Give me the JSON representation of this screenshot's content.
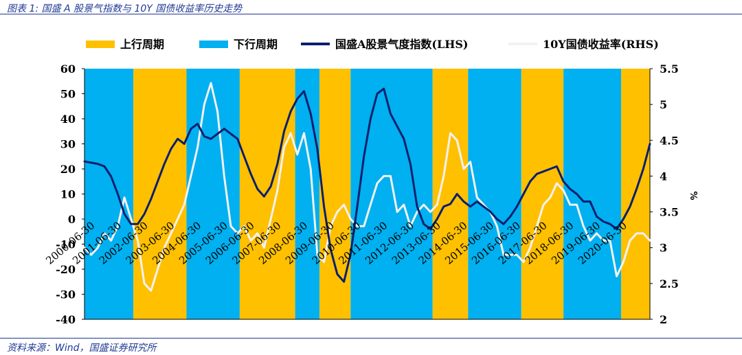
{
  "figure_title": "图表 1:  国盛 A 股景气指数与 10Y 国债收益率历史走势",
  "source_note": "资料来源：Wind，国盛证券研究所",
  "colors": {
    "upcycle": "#FFC000",
    "downcycle": "#00B0F0",
    "index_line": "#0A1F6E",
    "yield_line": "#F2F2F2",
    "text": "#1f3a93"
  },
  "chart_data": {
    "type": "line",
    "legend": [
      {
        "label": "上行周期",
        "kind": "band",
        "color": "#FFC000"
      },
      {
        "label": "下行周期",
        "kind": "band",
        "color": "#00B0F0"
      },
      {
        "label": "国盛A股景气度指数(LHS)",
        "kind": "line",
        "color": "#0A1F6E"
      },
      {
        "label": "10Y国债收益率(RHS)",
        "kind": "line",
        "color": "#F2F2F2"
      }
    ],
    "legend_position": "top",
    "y_left": {
      "ylim": [
        -40,
        60
      ],
      "ticks": [
        "60",
        "50",
        "40",
        "30",
        "20",
        "10",
        "0",
        "-10",
        "-20",
        "-30",
        "-40"
      ]
    },
    "y_right": {
      "ylim": [
        2,
        5.5
      ],
      "ticks": [
        "5.5",
        "5",
        "4.5",
        "4",
        "3.5",
        "3",
        "2.5",
        "2"
      ],
      "unit": "%"
    },
    "x_ticks": [
      "2000-06-30",
      "2001-06-30",
      "2002-06-30",
      "2003-06-30",
      "2004-06-30",
      "2005-06-30",
      "2006-06-30",
      "2007-06-30",
      "2008-06-30",
      "2009-06-30",
      "2010-06-30",
      "2011-06-30",
      "2012-06-30",
      "2013-06-30",
      "2014-06-30",
      "2015-06-30",
      "2016-06-30",
      "2017-06-30",
      "2018-06-30",
      "2019-06-30",
      "2020-06-30"
    ],
    "x_range": [
      "2000-03",
      "2021-06"
    ],
    "bands": [
      {
        "type": "down",
        "start": "2000-03",
        "end": "2002-01"
      },
      {
        "type": "up",
        "start": "2002-01",
        "end": "2004-01"
      },
      {
        "type": "down",
        "start": "2004-01",
        "end": "2006-01"
      },
      {
        "type": "up",
        "start": "2006-01",
        "end": "2008-02"
      },
      {
        "type": "down",
        "start": "2008-02",
        "end": "2009-01"
      },
      {
        "type": "up",
        "start": "2009-01",
        "end": "2010-03"
      },
      {
        "type": "down",
        "start": "2010-03",
        "end": "2013-04"
      },
      {
        "type": "up",
        "start": "2013-04",
        "end": "2014-08"
      },
      {
        "type": "down",
        "start": "2014-08",
        "end": "2016-08"
      },
      {
        "type": "up",
        "start": "2016-08",
        "end": "2018-03"
      },
      {
        "type": "down",
        "start": "2018-03",
        "end": "2020-05"
      },
      {
        "type": "up",
        "start": "2020-05",
        "end": "2021-06"
      }
    ],
    "series": [
      {
        "name": "国盛A股景气度指数(LHS)",
        "axis": "left",
        "points": [
          [
            "2000-03",
            23
          ],
          [
            "2000-06",
            22.5
          ],
          [
            "2000-09",
            22
          ],
          [
            "2000-12",
            21
          ],
          [
            "2001-03",
            17
          ],
          [
            "2001-06",
            10
          ],
          [
            "2001-09",
            2
          ],
          [
            "2001-12",
            -2
          ],
          [
            "2002-03",
            -2
          ],
          [
            "2002-06",
            2
          ],
          [
            "2002-09",
            8
          ],
          [
            "2002-12",
            15
          ],
          [
            "2003-03",
            22
          ],
          [
            "2003-06",
            28
          ],
          [
            "2003-09",
            32
          ],
          [
            "2003-12",
            30
          ],
          [
            "2004-03",
            36
          ],
          [
            "2004-06",
            38
          ],
          [
            "2004-09",
            33
          ],
          [
            "2004-12",
            32
          ],
          [
            "2005-03",
            34
          ],
          [
            "2005-06",
            36
          ],
          [
            "2005-09",
            34
          ],
          [
            "2005-12",
            32
          ],
          [
            "2006-03",
            25
          ],
          [
            "2006-06",
            18
          ],
          [
            "2006-09",
            12
          ],
          [
            "2006-12",
            9
          ],
          [
            "2007-03",
            13
          ],
          [
            "2007-06",
            22
          ],
          [
            "2007-09",
            35
          ],
          [
            "2007-12",
            43
          ],
          [
            "2008-03",
            48
          ],
          [
            "2008-06",
            51
          ],
          [
            "2008-09",
            42
          ],
          [
            "2008-12",
            28
          ],
          [
            "2009-03",
            5
          ],
          [
            "2009-06",
            -12
          ],
          [
            "2009-09",
            -22
          ],
          [
            "2009-12",
            -25
          ],
          [
            "2010-03",
            -14
          ],
          [
            "2010-06",
            5
          ],
          [
            "2010-09",
            25
          ],
          [
            "2010-12",
            40
          ],
          [
            "2011-03",
            50
          ],
          [
            "2011-06",
            52
          ],
          [
            "2011-09",
            42
          ],
          [
            "2011-12",
            37
          ],
          [
            "2012-03",
            32
          ],
          [
            "2012-06",
            22
          ],
          [
            "2012-09",
            5
          ],
          [
            "2012-12",
            -2
          ],
          [
            "2013-03",
            -4
          ],
          [
            "2013-06",
            0
          ],
          [
            "2013-09",
            5
          ],
          [
            "2013-12",
            6
          ],
          [
            "2014-03",
            10
          ],
          [
            "2014-06",
            7
          ],
          [
            "2014-09",
            5
          ],
          [
            "2014-12",
            7
          ],
          [
            "2015-03",
            5
          ],
          [
            "2015-06",
            3
          ],
          [
            "2015-09",
            0
          ],
          [
            "2015-12",
            -2
          ],
          [
            "2016-03",
            1
          ],
          [
            "2016-06",
            5
          ],
          [
            "2016-09",
            10
          ],
          [
            "2016-12",
            15
          ],
          [
            "2017-03",
            18
          ],
          [
            "2017-06",
            19
          ],
          [
            "2017-09",
            20
          ],
          [
            "2017-12",
            21
          ],
          [
            "2018-03",
            15
          ],
          [
            "2018-06",
            12
          ],
          [
            "2018-09",
            10
          ],
          [
            "2018-12",
            7
          ],
          [
            "2019-03",
            7
          ],
          [
            "2019-06",
            1
          ],
          [
            "2019-09",
            -1
          ],
          [
            "2019-12",
            -2
          ],
          [
            "2020-03",
            -4
          ],
          [
            "2020-06",
            0
          ],
          [
            "2020-09",
            5
          ],
          [
            "2020-12",
            12
          ],
          [
            "2021-03",
            20
          ],
          [
            "2021-06",
            30
          ]
        ]
      },
      {
        "name": "10Y国债收益率(RHS)",
        "axis": "right",
        "points": [
          [
            "2000-03",
            3.0
          ],
          [
            "2000-06",
            2.9
          ],
          [
            "2000-09",
            3.0
          ],
          [
            "2000-12",
            3.2
          ],
          [
            "2001-03",
            3.1
          ],
          [
            "2001-06",
            3.3
          ],
          [
            "2001-09",
            3.7
          ],
          [
            "2001-12",
            3.4
          ],
          [
            "2002-03",
            3.1
          ],
          [
            "2002-06",
            2.5
          ],
          [
            "2002-09",
            2.4
          ],
          [
            "2002-12",
            2.7
          ],
          [
            "2003-03",
            3.0
          ],
          [
            "2003-06",
            3.2
          ],
          [
            "2003-09",
            3.4
          ],
          [
            "2003-12",
            3.6
          ],
          [
            "2004-03",
            4.0
          ],
          [
            "2004-06",
            4.4
          ],
          [
            "2004-09",
            5.0
          ],
          [
            "2004-12",
            5.3
          ],
          [
            "2005-03",
            4.9
          ],
          [
            "2005-06",
            4.0
          ],
          [
            "2005-09",
            3.3
          ],
          [
            "2005-12",
            3.2
          ],
          [
            "2006-03",
            3.3
          ],
          [
            "2006-06",
            3.1
          ],
          [
            "2006-09",
            3.2
          ],
          [
            "2006-12",
            3.0
          ],
          [
            "2007-03",
            3.4
          ],
          [
            "2007-06",
            3.8
          ],
          [
            "2007-09",
            4.4
          ],
          [
            "2007-12",
            4.6
          ],
          [
            "2008-03",
            4.3
          ],
          [
            "2008-06",
            4.6
          ],
          [
            "2008-09",
            4.1
          ],
          [
            "2008-12",
            2.9
          ],
          [
            "2009-03",
            2.8
          ],
          [
            "2009-06",
            3.3
          ],
          [
            "2009-09",
            3.5
          ],
          [
            "2009-12",
            3.6
          ],
          [
            "2010-03",
            3.4
          ],
          [
            "2010-06",
            3.3
          ],
          [
            "2010-09",
            3.3
          ],
          [
            "2010-12",
            3.6
          ],
          [
            "2011-03",
            3.9
          ],
          [
            "2011-06",
            4.0
          ],
          [
            "2011-09",
            4.0
          ],
          [
            "2011-12",
            3.5
          ],
          [
            "2012-03",
            3.6
          ],
          [
            "2012-06",
            3.3
          ],
          [
            "2012-09",
            3.5
          ],
          [
            "2012-12",
            3.6
          ],
          [
            "2013-03",
            3.5
          ],
          [
            "2013-06",
            3.6
          ],
          [
            "2013-09",
            4.0
          ],
          [
            "2013-12",
            4.6
          ],
          [
            "2014-03",
            4.5
          ],
          [
            "2014-06",
            4.1
          ],
          [
            "2014-09",
            4.2
          ],
          [
            "2014-12",
            3.7
          ],
          [
            "2015-03",
            3.6
          ],
          [
            "2015-06",
            3.5
          ],
          [
            "2015-09",
            3.3
          ],
          [
            "2015-12",
            2.9
          ],
          [
            "2016-03",
            2.9
          ],
          [
            "2016-06",
            2.9
          ],
          [
            "2016-09",
            2.8
          ],
          [
            "2016-12",
            3.0
          ],
          [
            "2017-03",
            3.3
          ],
          [
            "2017-06",
            3.6
          ],
          [
            "2017-09",
            3.7
          ],
          [
            "2017-12",
            3.9
          ],
          [
            "2018-03",
            3.8
          ],
          [
            "2018-06",
            3.6
          ],
          [
            "2018-09",
            3.6
          ],
          [
            "2018-12",
            3.3
          ],
          [
            "2019-03",
            3.1
          ],
          [
            "2019-06",
            3.2
          ],
          [
            "2019-09",
            3.1
          ],
          [
            "2019-12",
            3.1
          ],
          [
            "2020-03",
            2.6
          ],
          [
            "2020-06",
            2.8
          ],
          [
            "2020-09",
            3.1
          ],
          [
            "2020-12",
            3.2
          ],
          [
            "2021-03",
            3.2
          ],
          [
            "2021-06",
            3.1
          ]
        ]
      }
    ]
  }
}
